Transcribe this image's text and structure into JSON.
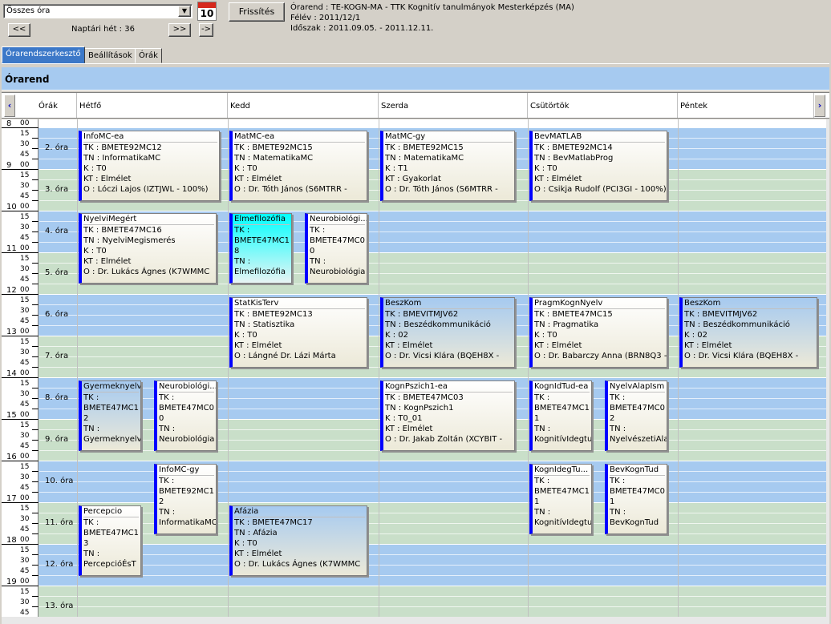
{
  "toolbar": {
    "combo_value": "Összes óra",
    "calendar_num": "10",
    "refresh_label": "Frissítés",
    "prev_label": "<<",
    "next_label": ">>",
    "goto_label": "->",
    "week_label": "Naptári hét : 36"
  },
  "info": {
    "line1": "Órarend : TE-KOGN-MA - TTK Kognitív tanulmányok Mesterképzés (MA)",
    "line2": "Félév : 2011/12/1",
    "line3": "Időszak : 2011.09.05. - 2011.12.11."
  },
  "tabs": [
    "Órarendszerkesztő",
    "Beállítások",
    "Órák"
  ],
  "header_title": "Órarend",
  "columns": {
    "nav_prev": "‹",
    "nav_next": "›",
    "hours": "Órák",
    "days": [
      "Hétfő",
      "Kedd",
      "Szerda",
      "Csütörtök",
      "Péntek"
    ]
  },
  "hours": [
    "8",
    "9",
    "10",
    "11",
    "12",
    "13",
    "14",
    "15",
    "16",
    "17",
    "18",
    "19"
  ],
  "minutes": [
    "00",
    "15",
    "30",
    "45"
  ],
  "periods": [
    "2. óra",
    "3. óra",
    "4. óra",
    "5. óra",
    "6. óra",
    "7. óra",
    "8. óra",
    "9. óra",
    "10. óra",
    "11. óra",
    "12. óra",
    "13. óra"
  ],
  "events": [
    {
      "title": "InfoMC-ea",
      "lines": [
        "TK : BMETE92MC12",
        "TN : InformatikaMC",
        "K : T0",
        "KT : Elmélet",
        "O :  Lóczi Lajos (IZTJWL - 100%)"
      ]
    },
    {
      "title": "MatMC-ea",
      "lines": [
        "TK : BMETE92MC15",
        "TN : MatematikaMC",
        "K : T0",
        "KT : Elmélet",
        "O :  Dr. Tóth János (S6MTRR -"
      ]
    },
    {
      "title": "MatMC-gy",
      "lines": [
        "TK : BMETE92MC15",
        "TN : MatematikaMC",
        "K : T1",
        "KT : Gyakorlat",
        "O :  Dr. Tóth János (S6MTRR -"
      ]
    },
    {
      "title": "BevMATLAB",
      "lines": [
        "TK : BMETE92MC14",
        "TN : BevMatlabProg",
        "K : T0",
        "KT : Elmélet",
        "O :  Csikja Rudolf (PCI3GI - 100%)"
      ]
    },
    {
      "title": "NyelviMegért",
      "lines": [
        "TK : BMETE47MC16",
        "TN : NyelviMegismerés",
        "K : T0",
        "KT : Elmélet",
        "O :  Dr. Lukács Ágnes (K7WMMC"
      ]
    },
    {
      "title": "Elmefilozófia",
      "lines": [
        "TK :",
        "BMETE47MC1",
        "8",
        "TN :",
        "Elmefilozófia"
      ]
    },
    {
      "title": "Neurobiológi...",
      "lines": [
        "TK :",
        "BMETE47MC0",
        "0",
        "TN :",
        "Neurobiológia"
      ]
    },
    {
      "title": "StatKisTerv",
      "lines": [
        "TK : BMETE92MC13",
        "TN : Statisztika",
        "K : T0",
        "KT : Elmélet",
        "O :  Lángné Dr. Lázi Márta"
      ]
    },
    {
      "title": "BeszKom",
      "lines": [
        "TK : BMEVITMJV62",
        "TN : Beszédkommunikáció",
        "K : 02",
        "KT : Elmélet",
        "O :  Dr. Vicsi Klára (BQEH8X -"
      ]
    },
    {
      "title": "PragmKognNyelv",
      "lines": [
        "TK : BMETE47MC15",
        "TN : Pragmatika",
        "K : T0",
        "KT : Elmélet",
        "O :  Dr. Babarczy Anna (BRN8Q3 -"
      ]
    },
    {
      "title": "BeszKom",
      "lines": [
        "TK : BMEVITMJV62",
        "TN : Beszédkommunikáció",
        "K : 02",
        "KT : Elmélet",
        "O :  Dr. Vicsi Klára (BQEH8X -"
      ]
    },
    {
      "title": "Gyermeknyelv",
      "lines": [
        "TK :",
        "BMETE47MC1",
        "2",
        "TN :",
        "Gyermeknyelv"
      ]
    },
    {
      "title": "Neurobiológi...",
      "lines": [
        "TK :",
        "BMETE47MC0",
        "0",
        "TN :",
        "Neurobiológia"
      ]
    },
    {
      "title": "KognPszich1-ea",
      "lines": [
        "TK : BMETE47MC03",
        "TN : KognPszich1",
        "K : T0_01",
        "KT : Elmélet",
        "O :  Dr. Jakab Zoltán (XCYBIT -"
      ]
    },
    {
      "title": "KognIdTud-ea",
      "lines": [
        "TK :",
        "BMETE47MC1",
        "1",
        "TN :",
        "KognitívIdegtu"
      ]
    },
    {
      "title": "NyelvAlapIsm",
      "lines": [
        "TK :",
        "BMETE47MC0",
        "2",
        "TN :",
        "NyelvészetiAla"
      ]
    },
    {
      "title": "InfoMC-gy",
      "lines": [
        "TK :",
        "BMETE92MC1",
        "2",
        "TN :",
        "InformatikaMC"
      ]
    },
    {
      "title": "KognIdegTu...",
      "lines": [
        "TK :",
        "BMETE47MC1",
        "1",
        "TN :",
        "KognitívIdegtu"
      ]
    },
    {
      "title": "BevKognTud",
      "lines": [
        "TK :",
        "BMETE47MC0",
        "1",
        "TN :",
        "BevKognTud"
      ]
    },
    {
      "title": "Percepcio",
      "lines": [
        "TK :",
        "BMETE47MC1",
        "3",
        "TN :",
        "PercepcióÉsT"
      ]
    },
    {
      "title": "Afázia",
      "lines": [
        "TK : BMETE47MC17",
        "TN : Afázia",
        "K : T0",
        "KT : Elmélet",
        "O :  Dr. Lukács Ágnes (K7WMMC"
      ]
    }
  ],
  "colors": {
    "blue_band": "#a6caf0",
    "green_band": "#c9dfc9",
    "accent": "#0000ff",
    "cyan": "#00ffff"
  }
}
